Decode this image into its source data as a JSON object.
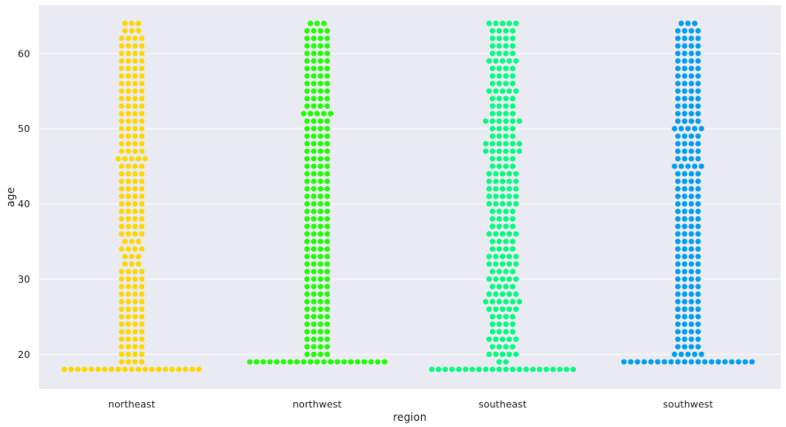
{
  "chart_data": {
    "type": "scatter",
    "subtype": "swarm",
    "title": "",
    "xlabel": "region",
    "ylabel": "age",
    "categories": [
      "northeast",
      "northwest",
      "southeast",
      "southwest"
    ],
    "ylim": [
      15.4,
      66.4
    ],
    "yticks": [
      20,
      30,
      40,
      50,
      60
    ],
    "grid": true,
    "background": "#EAEAF2",
    "grid_color": "#FFFFFF",
    "series": [
      {
        "category": "northeast",
        "color": "#FFD700",
        "age_counts": {
          "18": 21,
          "19": 4,
          "20": 4,
          "21": 4,
          "22": 4,
          "23": 4,
          "24": 4,
          "25": 4,
          "26": 4,
          "27": 4,
          "28": 4,
          "29": 4,
          "30": 4,
          "31": 4,
          "32": 3,
          "33": 3,
          "34": 4,
          "35": 3,
          "36": 4,
          "37": 4,
          "38": 4,
          "39": 4,
          "40": 4,
          "41": 4,
          "42": 4,
          "43": 4,
          "44": 4,
          "45": 4,
          "46": 5,
          "47": 4,
          "48": 4,
          "49": 4,
          "50": 4,
          "51": 4,
          "52": 4,
          "53": 4,
          "54": 4,
          "55": 4,
          "56": 4,
          "57": 4,
          "58": 4,
          "59": 4,
          "60": 4,
          "61": 4,
          "62": 4,
          "63": 3,
          "64": 3
        }
      },
      {
        "category": "northwest",
        "color": "#22FF00",
        "age_counts": {
          "18": 0,
          "19": 21,
          "20": 4,
          "21": 4,
          "22": 4,
          "23": 4,
          "24": 4,
          "25": 4,
          "26": 4,
          "27": 4,
          "28": 4,
          "29": 4,
          "30": 4,
          "31": 4,
          "32": 4,
          "33": 4,
          "34": 4,
          "35": 4,
          "36": 4,
          "37": 4,
          "38": 4,
          "39": 4,
          "40": 4,
          "41": 4,
          "42": 4,
          "43": 4,
          "44": 4,
          "45": 4,
          "46": 4,
          "47": 4,
          "48": 4,
          "49": 4,
          "50": 4,
          "51": 4,
          "52": 5,
          "53": 4,
          "54": 4,
          "55": 4,
          "56": 4,
          "57": 4,
          "58": 4,
          "59": 4,
          "60": 4,
          "61": 4,
          "62": 4,
          "63": 4,
          "64": 3
        }
      },
      {
        "category": "southeast",
        "color": "#00FF7F",
        "age_counts": {
          "18": 22,
          "19": 2,
          "20": 5,
          "21": 4,
          "22": 5,
          "23": 4,
          "24": 4,
          "25": 4,
          "26": 5,
          "27": 6,
          "28": 5,
          "29": 4,
          "30": 5,
          "31": 4,
          "32": 5,
          "33": 5,
          "34": 4,
          "35": 4,
          "36": 5,
          "37": 4,
          "38": 4,
          "39": 4,
          "40": 5,
          "41": 5,
          "42": 5,
          "43": 5,
          "44": 5,
          "45": 4,
          "46": 4,
          "47": 6,
          "48": 6,
          "49": 4,
          "50": 4,
          "51": 6,
          "52": 4,
          "53": 4,
          "54": 4,
          "55": 5,
          "56": 4,
          "57": 4,
          "58": 4,
          "59": 5,
          "60": 4,
          "61": 4,
          "62": 4,
          "63": 4,
          "64": 5
        }
      },
      {
        "category": "southwest",
        "color": "#00A0F0",
        "age_counts": {
          "18": 0,
          "19": 20,
          "20": 5,
          "21": 4,
          "22": 4,
          "23": 4,
          "24": 4,
          "25": 4,
          "26": 4,
          "27": 4,
          "28": 4,
          "29": 4,
          "30": 4,
          "31": 4,
          "32": 4,
          "33": 4,
          "34": 4,
          "35": 4,
          "36": 4,
          "37": 4,
          "38": 4,
          "39": 4,
          "40": 4,
          "41": 4,
          "42": 4,
          "43": 4,
          "44": 4,
          "45": 5,
          "46": 4,
          "47": 4,
          "48": 4,
          "49": 4,
          "50": 5,
          "51": 4,
          "52": 4,
          "53": 4,
          "54": 4,
          "55": 4,
          "56": 4,
          "57": 4,
          "58": 4,
          "59": 4,
          "60": 4,
          "61": 4,
          "62": 4,
          "63": 4,
          "64": 3
        }
      }
    ]
  }
}
